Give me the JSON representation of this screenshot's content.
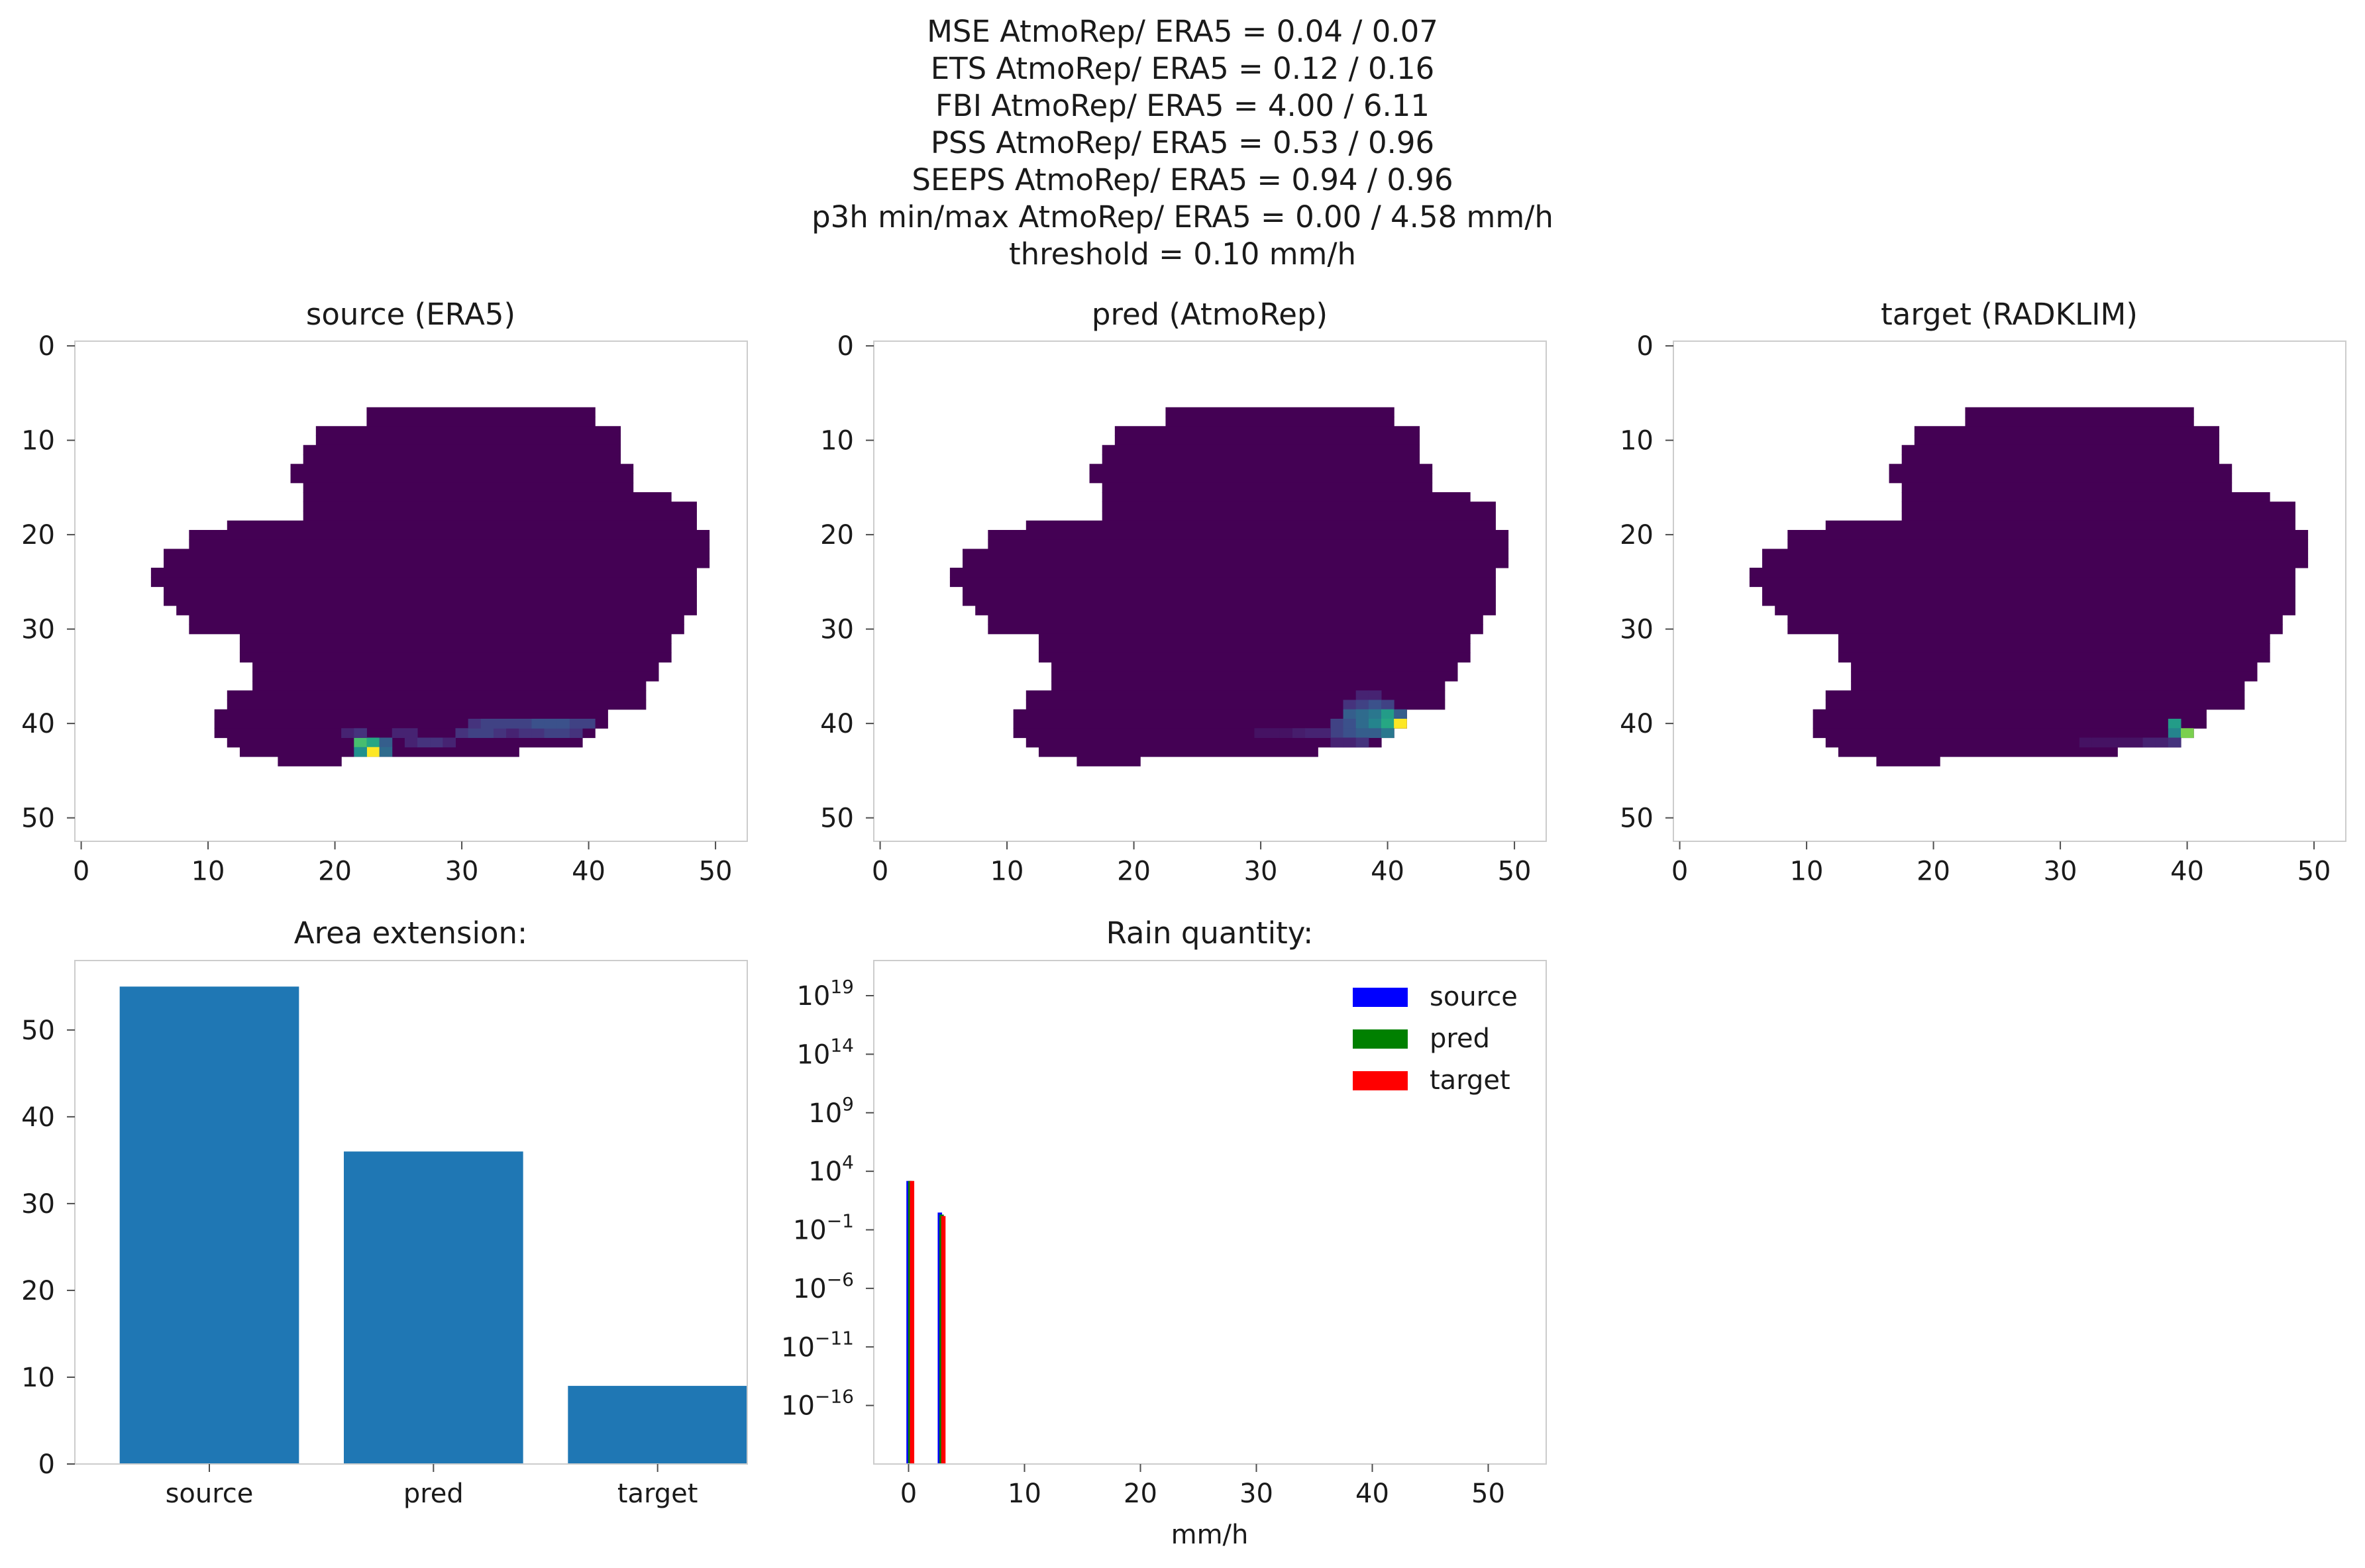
{
  "figure": {
    "suptitle": [
      "MSE AtmoRep/ ERA5 = 0.04 / 0.07",
      "ETS AtmoRep/ ERA5 = 0.12 / 0.16",
      "FBI AtmoRep/ ERA5 = 4.00 / 6.11",
      "PSS AtmoRep/ ERA5 = 0.53 / 0.96",
      "SEEPS AtmoRep/ ERA5 = 0.94 / 0.96",
      "p3h min/max AtmoRep/ ERA5 = 0.00 / 4.58 mm/h",
      "threshold = 0.10 mm/h"
    ]
  },
  "chart_data": [
    {
      "type": "heatmap",
      "title": "source (ERA5)",
      "xlim": [
        0,
        53
      ],
      "ylim": [
        53,
        0
      ],
      "xticks": [
        0,
        10,
        20,
        30,
        40,
        50
      ],
      "yticks": [
        0,
        10,
        20,
        30,
        40,
        50
      ],
      "colormap": "viridis",
      "background_value": 0,
      "cells": [
        [
          22,
          42,
          0.7
        ],
        [
          23,
          42,
          0.6
        ],
        [
          24,
          42,
          0.3
        ],
        [
          23,
          43,
          1.0
        ],
        [
          22,
          43,
          0.5
        ],
        [
          24,
          43,
          0.35
        ],
        [
          21,
          41,
          0.1
        ],
        [
          22,
          41,
          0.15
        ],
        [
          25,
          41,
          0.1
        ],
        [
          26,
          41,
          0.1
        ],
        [
          26,
          42,
          0.1
        ],
        [
          27,
          42,
          0.15
        ],
        [
          28,
          42,
          0.15
        ],
        [
          29,
          42,
          0.1
        ],
        [
          30,
          41,
          0.15
        ],
        [
          31,
          41,
          0.2
        ],
        [
          32,
          41,
          0.2
        ],
        [
          33,
          41,
          0.15
        ],
        [
          34,
          41,
          0.1
        ],
        [
          35,
          41,
          0.15
        ],
        [
          36,
          41,
          0.15
        ],
        [
          37,
          41,
          0.2
        ],
        [
          38,
          41,
          0.2
        ],
        [
          39,
          41,
          0.15
        ],
        [
          31,
          40,
          0.15
        ],
        [
          32,
          40,
          0.2
        ],
        [
          33,
          40,
          0.2
        ],
        [
          34,
          40,
          0.2
        ],
        [
          35,
          40,
          0.2
        ],
        [
          36,
          40,
          0.25
        ],
        [
          37,
          40,
          0.25
        ],
        [
          38,
          40,
          0.25
        ],
        [
          39,
          40,
          0.2
        ],
        [
          40,
          40,
          0.2
        ]
      ]
    },
    {
      "type": "heatmap",
      "title": "pred (AtmoRep)",
      "xlim": [
        0,
        53
      ],
      "ylim": [
        53,
        0
      ],
      "xticks": [
        0,
        10,
        20,
        30,
        40,
        50
      ],
      "yticks": [
        0,
        10,
        20,
        30,
        40,
        50
      ],
      "colormap": "viridis",
      "background_value": 0,
      "cells": [
        [
          38,
          37,
          0.1
        ],
        [
          39,
          37,
          0.1
        ],
        [
          37,
          38,
          0.15
        ],
        [
          38,
          38,
          0.2
        ],
        [
          39,
          38,
          0.25
        ],
        [
          40,
          38,
          0.2
        ],
        [
          37,
          39,
          0.3
        ],
        [
          38,
          39,
          0.35
        ],
        [
          39,
          39,
          0.4
        ],
        [
          40,
          39,
          0.55
        ],
        [
          41,
          39,
          0.3
        ],
        [
          36,
          40,
          0.2
        ],
        [
          37,
          40,
          0.25
        ],
        [
          38,
          40,
          0.35
        ],
        [
          39,
          40,
          0.45
        ],
        [
          40,
          40,
          0.6
        ],
        [
          41,
          40,
          1.0
        ],
        [
          36,
          41,
          0.2
        ],
        [
          37,
          41,
          0.25
        ],
        [
          38,
          41,
          0.3
        ],
        [
          39,
          41,
          0.3
        ],
        [
          40,
          41,
          0.4
        ],
        [
          30,
          41,
          0.05
        ],
        [
          31,
          41,
          0.05
        ],
        [
          32,
          41,
          0.05
        ],
        [
          33,
          41,
          0.08
        ],
        [
          34,
          41,
          0.1
        ],
        [
          35,
          41,
          0.1
        ],
        [
          36,
          42,
          0.1
        ],
        [
          37,
          42,
          0.1
        ],
        [
          38,
          42,
          0.15
        ]
      ]
    },
    {
      "type": "heatmap",
      "title": "target (RADKLIM)",
      "xlim": [
        0,
        53
      ],
      "ylim": [
        53,
        0
      ],
      "xticks": [
        0,
        10,
        20,
        30,
        40,
        50
      ],
      "yticks": [
        0,
        10,
        20,
        30,
        40,
        50
      ],
      "colormap": "viridis",
      "background_value": 0,
      "cells": [
        [
          39,
          40,
          0.55
        ],
        [
          39,
          41,
          0.45
        ],
        [
          40,
          41,
          0.8
        ],
        [
          32,
          42,
          0.05
        ],
        [
          33,
          42,
          0.05
        ],
        [
          34,
          42,
          0.05
        ],
        [
          35,
          42,
          0.05
        ],
        [
          36,
          42,
          0.05
        ],
        [
          37,
          42,
          0.1
        ],
        [
          38,
          42,
          0.1
        ],
        [
          39,
          42,
          0.15
        ]
      ]
    },
    {
      "type": "bar",
      "title": "Area extension:",
      "categories": [
        "source",
        "pred",
        "target"
      ],
      "values": [
        55,
        36,
        9
      ],
      "ylim": [
        0,
        58
      ],
      "yticks": [
        0,
        10,
        20,
        30,
        40,
        50
      ],
      "color": "#1f77b4"
    },
    {
      "type": "bar",
      "title": "Rain quantity:",
      "xlabel": "mm/h",
      "yscale": "log",
      "xlim": [
        -3,
        55
      ],
      "xticks": [
        0,
        10,
        20,
        30,
        40,
        50
      ],
      "ylim_exponent": [
        -21,
        22
      ],
      "ytick_exponents": [
        -16,
        -11,
        -6,
        -1,
        4,
        9,
        14,
        19
      ],
      "series": [
        {
          "name": "source",
          "color": "#0000ff",
          "x": [
            0.0,
            2.7
          ],
          "values": [
            1500,
            3.0
          ]
        },
        {
          "name": "pred",
          "color": "#008000",
          "x": [
            0.15,
            2.85
          ],
          "values": [
            1500,
            2.0
          ]
        },
        {
          "name": "target",
          "color": "#ff0000",
          "x": [
            0.3,
            3.0
          ],
          "values": [
            1500,
            1.5
          ]
        }
      ],
      "legend_position": "upper-right"
    }
  ]
}
